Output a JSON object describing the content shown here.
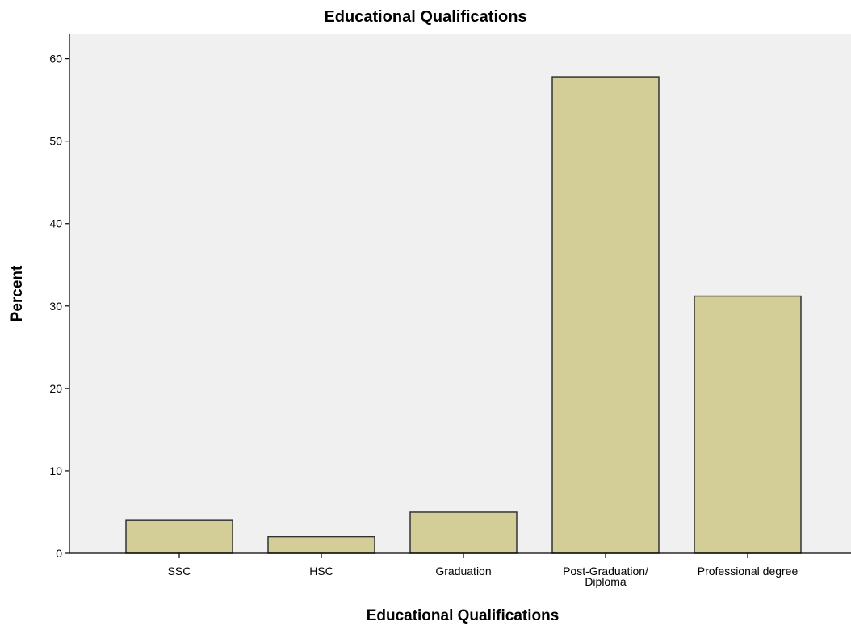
{
  "chart_data": {
    "type": "bar",
    "title": "Educational Qualifications",
    "xlabel": "Educational Qualifications",
    "ylabel": "Percent",
    "categories": [
      [
        "SSC"
      ],
      [
        "HSC"
      ],
      [
        "Graduation"
      ],
      [
        "Post-Graduation/",
        "Diploma"
      ],
      [
        "Professional degree"
      ]
    ],
    "values": [
      4,
      2,
      5,
      57.8,
      31.2
    ],
    "ylim": [
      0,
      60
    ],
    "yticks": [
      0,
      10,
      20,
      30,
      40,
      50,
      60
    ],
    "grid": false,
    "legend": "none",
    "colors": {
      "plot_background": "#f0f0f0",
      "bar_fill": "#d3ce97",
      "bar_stroke": "#333333",
      "axis": "#000000"
    }
  }
}
